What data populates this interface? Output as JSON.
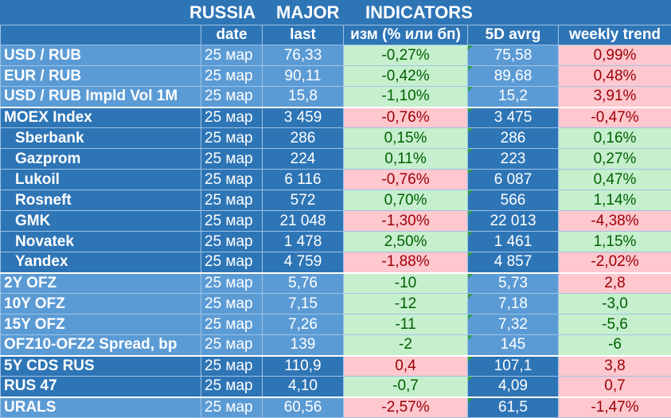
{
  "title": {
    "w1": "RUSSIA",
    "w2": "MAJOR",
    "w3": "INDICATORS"
  },
  "header": {
    "name": "",
    "date": "date",
    "last": "last",
    "chg": "изм (% или бп)",
    "avg": "5D avrg",
    "trend": "weekly trend"
  },
  "rows": [
    {
      "name": "USD / RUB",
      "date": "25 мар",
      "last": "76,33",
      "chg": "-0,27%",
      "avg": "75,58",
      "trend": "0,99%"
    },
    {
      "name": "EUR / RUB",
      "date": "25 мар",
      "last": "90,11",
      "chg": "-0,42%",
      "avg": "89,68",
      "trend": "0,48%"
    },
    {
      "name": "USD / RUB Impld Vol 1M",
      "date": "25 мар",
      "last": "15,8",
      "chg": "-1,10%",
      "avg": "15,2",
      "trend": "3,91%"
    },
    {
      "name": "MOEX Index",
      "date": "25 мар",
      "last": "3 459",
      "chg": "-0,76%",
      "avg": "3 475",
      "trend": "-0,47%"
    },
    {
      "name": "Sberbank",
      "date": "25 мар",
      "last": "286",
      "chg": "0,15%",
      "avg": "286",
      "trend": "0,16%"
    },
    {
      "name": "Gazprom",
      "date": "25 мар",
      "last": "224",
      "chg": "0,11%",
      "avg": "223",
      "trend": "0,27%"
    },
    {
      "name": "Lukoil",
      "date": "25 мар",
      "last": "6 116",
      "chg": "-0,76%",
      "avg": "6 087",
      "trend": "0,47%"
    },
    {
      "name": "Rosneft",
      "date": "25 мар",
      "last": "572",
      "chg": "0,70%",
      "avg": "566",
      "trend": "1,14%"
    },
    {
      "name": "GMK",
      "date": "25 мар",
      "last": "21 048",
      "chg": "-1,30%",
      "avg": "22 013",
      "trend": "-4,38%"
    },
    {
      "name": "Novatek",
      "date": "25 мар",
      "last": "1 478",
      "chg": "2,50%",
      "avg": "1 461",
      "trend": "1,15%"
    },
    {
      "name": "Yandex",
      "date": "25 мар",
      "last": "4 759",
      "chg": "-1,88%",
      "avg": "4 857",
      "trend": "-2,02%"
    },
    {
      "name": "2Y OFZ",
      "date": "25 мар",
      "last": "5,76",
      "chg": "-10",
      "avg": "5,73",
      "trend": "2,8"
    },
    {
      "name": "10Y OFZ",
      "date": "25 мар",
      "last": "7,15",
      "chg": "-12",
      "avg": "7,18",
      "trend": "-3,0"
    },
    {
      "name": "15Y OFZ",
      "date": "25 мар",
      "last": "7,26",
      "chg": "-11",
      "avg": "7,32",
      "trend": "-5,6"
    },
    {
      "name": "OFZ10-OFZ2 Spread, bp",
      "date": "25 мар",
      "last": "139",
      "chg": "-2",
      "avg": "145",
      "trend": "-6"
    },
    {
      "name": "5Y CDS RUS",
      "date": "25 мар",
      "last": "110,9",
      "chg": "0,4",
      "avg": "107,1",
      "trend": "3,8"
    },
    {
      "name": "RUS 47",
      "date": "25 мар",
      "last": "4,10",
      "chg": "-0,7",
      "avg": "4,09",
      "trend": "0,7"
    },
    {
      "name": "URALS",
      "date": "25 мар",
      "last": "60,56",
      "chg": "-2,57%",
      "avg": "61,5",
      "trend": "-1,47%"
    }
  ],
  "colors": {
    "positive_bg": "#c6efce",
    "positive_fg": "#006100",
    "negative_bg": "#ffc7ce",
    "negative_fg": "#9c0006",
    "blue_dark": "#2e75b6",
    "blue_light": "#5b9bd5"
  }
}
